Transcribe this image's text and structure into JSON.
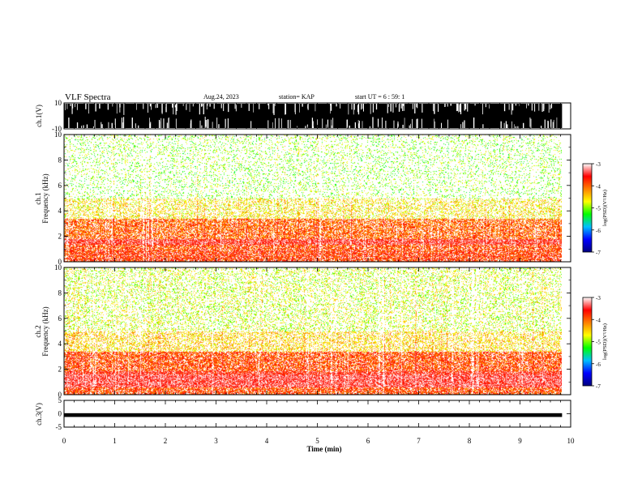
{
  "header": {
    "title": "VLF Spectra",
    "date": "Aug.24, 2023",
    "station": "station= KAP",
    "start": "start  UT =   6 : 59: 1"
  },
  "chart_data": [
    {
      "type": "area",
      "panel": "ch1-waveform",
      "ylabel": "ch.1(V)",
      "ylim": [
        -10,
        10
      ],
      "yticks": [
        "10",
        "-10"
      ],
      "xlim": [
        0,
        10
      ],
      "x_end_data": 9.83,
      "description_values": {
        "typical_envelope": [
          -10,
          10
        ],
        "spike_excursions": [
          -8,
          8
        ]
      }
    },
    {
      "type": "heatmap",
      "panel": "ch1-spectrogram",
      "ylabel": "ch.1\nFrequency (kHz)",
      "ylim": [
        0,
        10
      ],
      "yticks": [
        0,
        2,
        4,
        6,
        8,
        10
      ],
      "xlim": [
        0,
        10
      ],
      "x_end_data": 9.83,
      "bands": [
        {
          "from_khz": 0.0,
          "to_khz": 0.9,
          "level": -3.8
        },
        {
          "from_khz": 0.9,
          "to_khz": 1.4,
          "level": -3.9
        },
        {
          "from_khz": 1.4,
          "to_khz": 1.8,
          "level": -3.5
        },
        {
          "from_khz": 1.8,
          "to_khz": 3.4,
          "level": -4.0
        },
        {
          "from_khz": 3.4,
          "to_khz": 5.0,
          "level": -4.6
        },
        {
          "from_khz": 5.0,
          "to_khz": 10.0,
          "level": -5.0
        }
      ],
      "colorbar": {
        "label": "log(PSD)(V²/Hz)",
        "ticks": [
          "-3",
          "-4",
          "-5",
          "-6",
          "-7"
        ],
        "range": [
          -7,
          -3
        ]
      }
    },
    {
      "type": "heatmap",
      "panel": "ch2-spectrogram",
      "ylabel": "ch.2\nFrequency (kHz)",
      "ylim": [
        0,
        10
      ],
      "yticks": [
        0,
        2,
        4,
        6,
        8,
        10
      ],
      "xlim": [
        0,
        10
      ],
      "x_end_data": 9.83,
      "bands": [
        {
          "from_khz": 0.0,
          "to_khz": 0.6,
          "level": -3.9
        },
        {
          "from_khz": 0.6,
          "to_khz": 1.6,
          "level": -3.4
        },
        {
          "from_khz": 1.6,
          "to_khz": 1.9,
          "level": -3.6
        },
        {
          "from_khz": 1.9,
          "to_khz": 3.4,
          "level": -3.9
        },
        {
          "from_khz": 3.4,
          "to_khz": 5.0,
          "level": -4.5
        },
        {
          "from_khz": 5.0,
          "to_khz": 10.0,
          "level": -4.8
        }
      ],
      "colorbar": {
        "label": "log(PSD)(V²/Hz)",
        "ticks": [
          "-3",
          "-4",
          "-5",
          "-6",
          "-7"
        ],
        "range": [
          -7,
          -3
        ]
      }
    },
    {
      "type": "area",
      "panel": "ch3-waveform",
      "ylabel": "ch.3(V)",
      "ylim": [
        -5,
        5
      ],
      "yticks": [
        "5",
        "0",
        "-5"
      ],
      "xlim": [
        0,
        10
      ],
      "x_end_data": 9.83,
      "description_values": {
        "typical_envelope": [
          -1.2,
          0.2
        ]
      }
    }
  ],
  "xaxis": {
    "label": "Time (min)",
    "ticks": [
      "0",
      "1",
      "2",
      "3",
      "4",
      "5",
      "6",
      "7",
      "8",
      "9",
      "10"
    ],
    "range": [
      0,
      10
    ]
  },
  "colormap": {
    "stops": [
      "#000080",
      "#0000ff",
      "#00bfff",
      "#00ff00",
      "#ffff00",
      "#ff8000",
      "#ff0000",
      "#ffffff"
    ]
  }
}
